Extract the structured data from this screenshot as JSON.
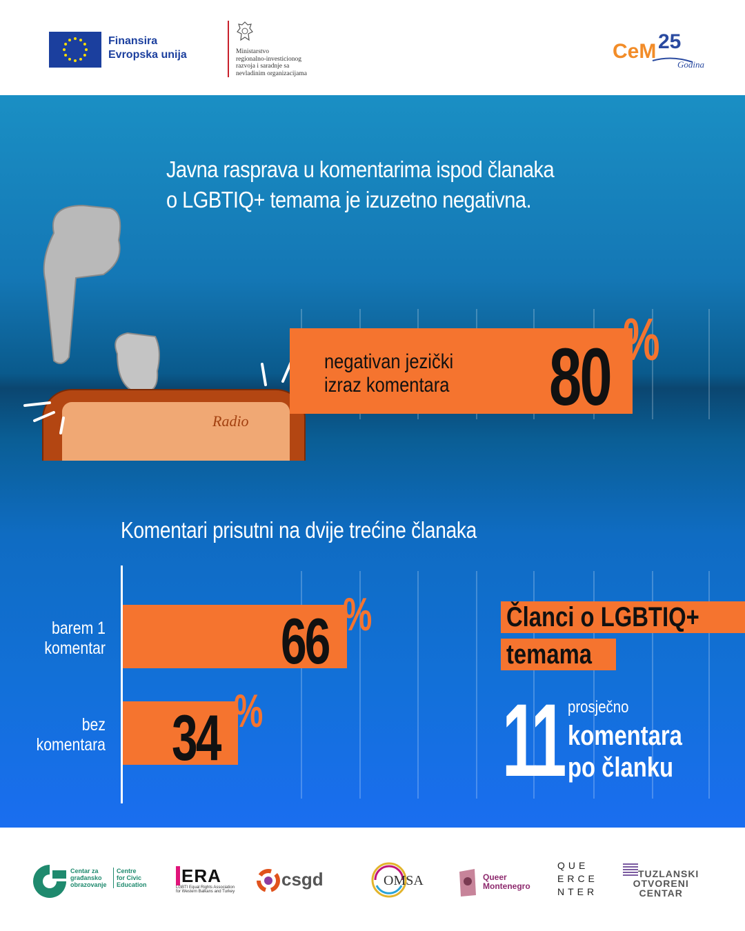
{
  "header": {
    "eu_funding_line1": "Finansira",
    "eu_funding_line2": "Evropska unija",
    "ministry_lines": [
      "Ministarstvo",
      "regionalno-investicionog",
      "razvoja i saradnje sa",
      "nevladinim organizacijama"
    ],
    "cemi_logo_icon": "cemi-25-godina-logo"
  },
  "headline": {
    "line1": "Javna rasprava u komentarima ispod članaka",
    "line2": "o LGBTIQ+ temama je izuzetno negativna."
  },
  "negative_stat": {
    "label_line1": "negativan jezički",
    "label_line2": "izraz komentara",
    "value": "80",
    "unit": "%"
  },
  "section_title": "Komentari prisutni na dvije trećine članaka",
  "chart_data": {
    "type": "bar",
    "orientation": "horizontal",
    "categories": [
      "barem 1 komentar",
      "bez komentara"
    ],
    "category_lines": [
      [
        "barem 1",
        "komentar"
      ],
      [
        "bez",
        "komentara"
      ]
    ],
    "values": [
      66,
      34
    ],
    "value_labels": [
      "66",
      "34"
    ],
    "unit": "%",
    "xlim": [
      0,
      100
    ],
    "bar_color": "#f5742f"
  },
  "articles_tag": {
    "line1": "Članci o LGBTIQ+",
    "line2": "temama"
  },
  "average": {
    "value": "11",
    "small_label": "prosječno",
    "line1": "komentara",
    "line2": "po članku"
  },
  "footer_logos": [
    {
      "name": "centar-za-gradjansko-obrazovanje-logo",
      "text": [
        "Centar za",
        "građansko",
        "obrazovanje"
      ],
      "text_en": [
        "Centre",
        "for Civic",
        "Education"
      ]
    },
    {
      "name": "era-logo",
      "text": [
        "ERA"
      ],
      "sub": [
        "LGBTI Equal Rights Association",
        "for Western Balkans and Turkey"
      ]
    },
    {
      "name": "csgd-logo",
      "text": [
        "csgd"
      ]
    },
    {
      "name": "omsa-logo",
      "text": [
        "OMSA"
      ]
    },
    {
      "name": "queer-montenegro-logo",
      "text": [
        "Queer",
        "Montenegro"
      ]
    },
    {
      "name": "queer-center-logo",
      "text": [
        "QUE",
        "ERCE",
        "NTER"
      ]
    },
    {
      "name": "tuzlanski-otvoreni-centar-logo",
      "text": [
        "TUZLANSKI",
        "OTVORENI",
        "CENTAR"
      ]
    }
  ],
  "colors": {
    "accent_orange": "#f5742f",
    "eu_blue": "#1b3f9e",
    "background_top": "#1a8fc4",
    "background_bottom": "#1a6ef0"
  }
}
